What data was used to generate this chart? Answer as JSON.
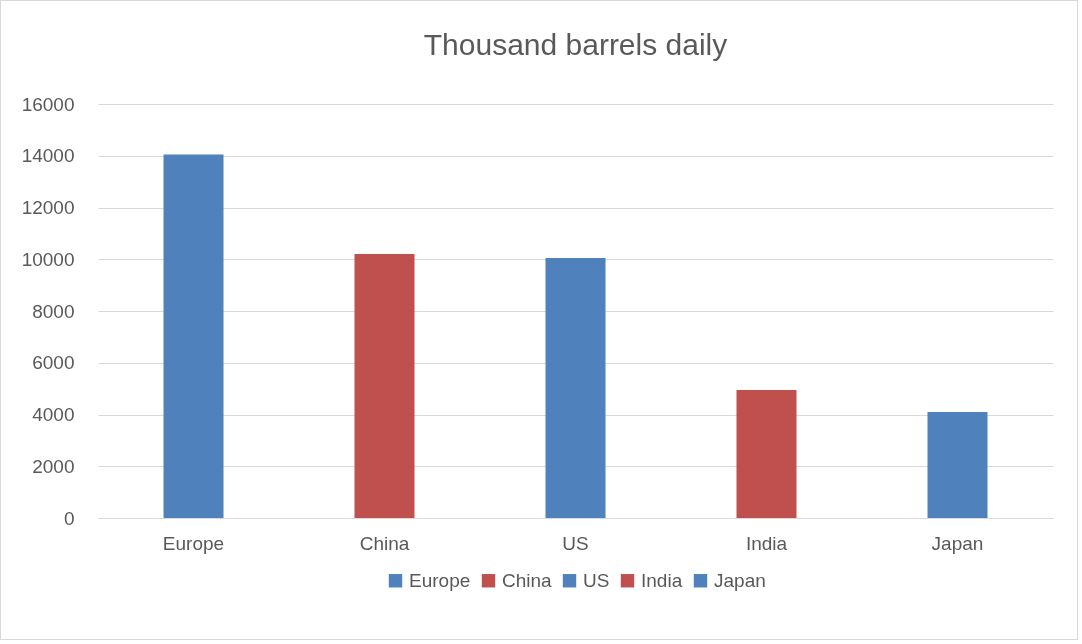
{
  "chart_data": {
    "type": "bar",
    "title": "Thousand barrels daily",
    "categories": [
      "Europe",
      "China",
      "US",
      "India",
      "Japan"
    ],
    "series": [
      {
        "name": "Europe",
        "color": "#4f81bd",
        "values": [
          14050,
          null,
          null,
          null,
          null
        ]
      },
      {
        "name": "China",
        "color": "#c0504d",
        "values": [
          null,
          10200,
          null,
          null,
          null
        ]
      },
      {
        "name": "US",
        "color": "#4f81bd",
        "values": [
          null,
          null,
          10050,
          null,
          null
        ]
      },
      {
        "name": "India",
        "color": "#c0504d",
        "values": [
          null,
          null,
          null,
          4950,
          null
        ]
      },
      {
        "name": "Japan",
        "color": "#4f81bd",
        "values": [
          null,
          null,
          null,
          null,
          4100
        ]
      }
    ],
    "ylim": [
      0,
      16000
    ],
    "yticks": [
      0,
      2000,
      4000,
      6000,
      8000,
      10000,
      12000,
      14000,
      16000
    ],
    "grid": "y",
    "legend": "bottom"
  }
}
